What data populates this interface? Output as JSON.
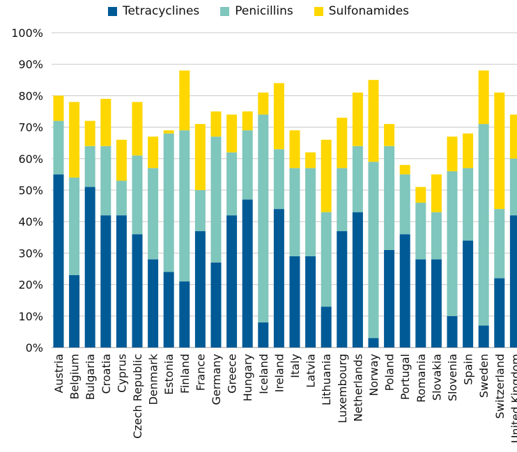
{
  "chart_data": {
    "type": "bar",
    "stacked": true,
    "categories": [
      "Austria",
      "Belgium",
      "Bulgaria",
      "Croatia",
      "Cyprus",
      "Czech Republic",
      "Denmark",
      "Estonia",
      "Finland",
      "France",
      "Germany",
      "Greece",
      "Hungary",
      "Iceland",
      "Ireland",
      "Italy",
      "Latvia",
      "Lithuania",
      "Luxembourg",
      "Netherlands",
      "Norway",
      "Poland",
      "Portugal",
      "Romania",
      "Slovakia",
      "Slovenia",
      "Spain",
      "Sweden",
      "Switzerland",
      "United Kingdom"
    ],
    "series": [
      {
        "name": "Tetracyclines",
        "color": "#005a96",
        "values": [
          55,
          23,
          51,
          42,
          42,
          36,
          28,
          24,
          21,
          37,
          27,
          42,
          47,
          8,
          44,
          29,
          29,
          13,
          37,
          43,
          3,
          31,
          36,
          28,
          28,
          10,
          34,
          7,
          22,
          42
        ]
      },
      {
        "name": "Penicillins",
        "color": "#7fc6bd",
        "values": [
          17,
          31,
          13,
          22,
          11,
          25,
          29,
          44,
          48,
          13,
          40,
          20,
          22,
          66,
          19,
          28,
          28,
          30,
          20,
          21,
          56,
          33,
          19,
          18,
          15,
          46,
          23,
          64,
          22,
          18
        ]
      },
      {
        "name": "Sulfonamides",
        "color": "#ffd700",
        "values": [
          8,
          24,
          8,
          15,
          13,
          17,
          10,
          1,
          19,
          21,
          8,
          12,
          6,
          7,
          21,
          12,
          5,
          23,
          16,
          17,
          26,
          7,
          3,
          5,
          12,
          11,
          11,
          17,
          37,
          14
        ]
      }
    ],
    "ylim": [
      0,
      100
    ],
    "yticks": [
      "0%",
      "10%",
      "20%",
      "30%",
      "40%",
      "50%",
      "60%",
      "70%",
      "80%",
      "90%",
      "100%"
    ],
    "grid": true,
    "legend_position": "top-center"
  }
}
